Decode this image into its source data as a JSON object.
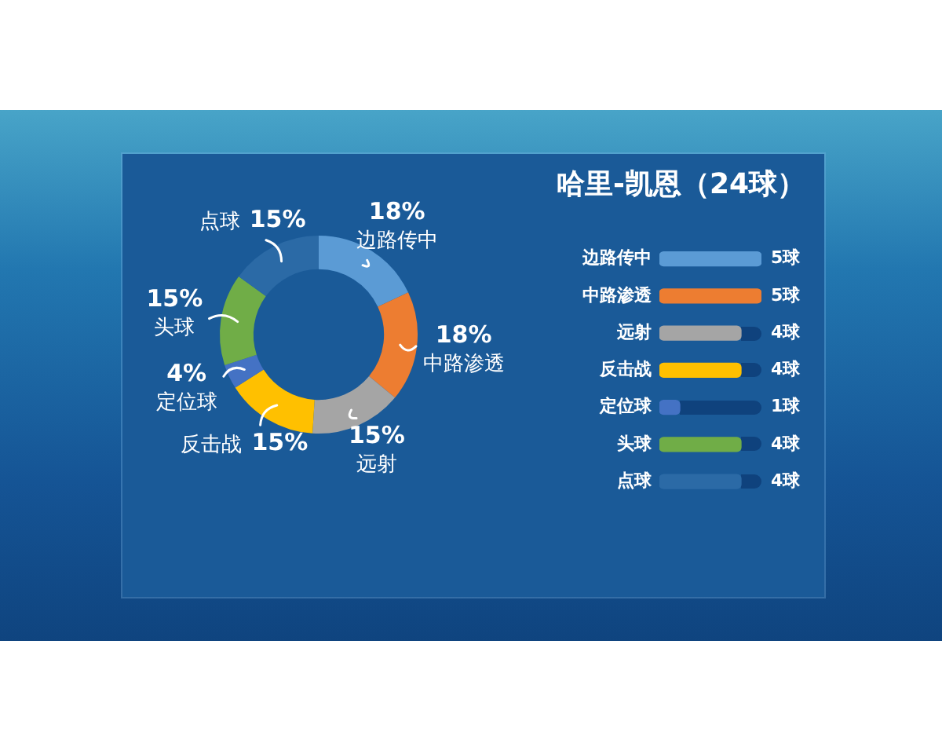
{
  "chart_data": [
    {
      "type": "donut",
      "categories": [
        "边路传中",
        "中路渗透",
        "远射",
        "反击战",
        "定位球",
        "头球",
        "点球"
      ],
      "values": [
        18,
        18,
        15,
        15,
        4,
        15,
        15
      ],
      "colors": [
        "#5b9bd5",
        "#ed7d31",
        "#a5a5a5",
        "#ffc000",
        "#4472c4",
        "#70ad47",
        "#2b6aa6"
      ],
      "value_labels": [
        "18%",
        "18%",
        "15%",
        "15%",
        "4%",
        "15%",
        "15%"
      ]
    },
    {
      "type": "bar",
      "orientation": "horizontal",
      "title": "哈里-凯恩（24球）",
      "categories": [
        "边路传中",
        "中路渗透",
        "远射",
        "反击战",
        "定位球",
        "头球",
        "点球"
      ],
      "values": [
        5,
        5,
        4,
        4,
        1,
        4,
        4
      ],
      "colors": [
        "#5b9bd5",
        "#ed7d31",
        "#a5a5a5",
        "#ffc000",
        "#4472c4",
        "#70ad47",
        "#2b6aa6"
      ],
      "value_labels": [
        "5球",
        "5球",
        "4球",
        "4球",
        "1球",
        "4球",
        "4球"
      ],
      "tick_labels": "y"
    }
  ]
}
